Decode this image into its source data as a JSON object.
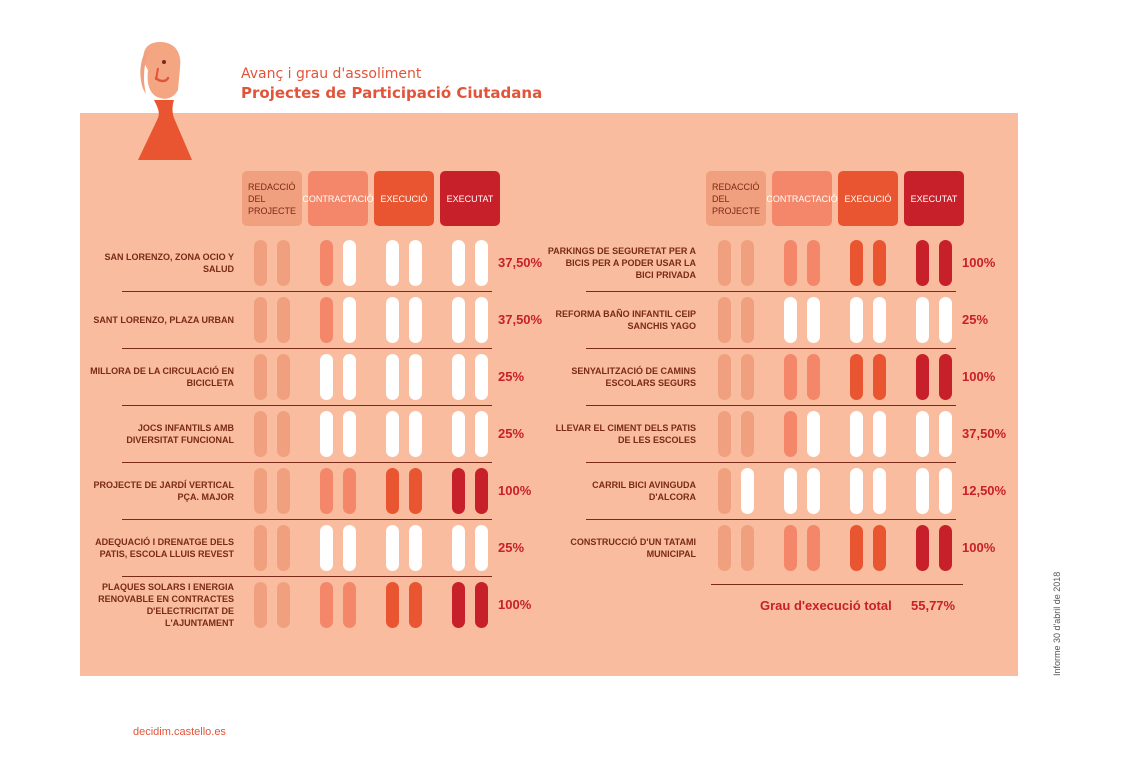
{
  "header": {
    "subtitle": "Avanç i grau d'assoliment",
    "title": "Projectes de Participació Ciutadana"
  },
  "colors": {
    "panel": "#f9bc9e",
    "redaccio": "#f0a07e",
    "contractacio": "#f4876a",
    "execucio": "#e85530",
    "executat": "#c8202a",
    "empty": "#ffffff",
    "percent_text": "#c8202a"
  },
  "chart_data": {
    "type": "table",
    "phases": [
      "REDACCIÓ DEL PROJECTE",
      "CONTRACTACIÓ",
      "EXECUCIÓ",
      "EXECUTAT"
    ],
    "left_projects": [
      {
        "name": "SAN LORENZO, ZONA OCIO Y SALUD",
        "phase_fill": [
          1,
          0.5,
          0,
          0
        ],
        "percent": "37,50%"
      },
      {
        "name": "SANT LORENZO, PLAZA URBAN",
        "phase_fill": [
          1,
          0.5,
          0,
          0
        ],
        "percent": "37,50%"
      },
      {
        "name": "MILLORA DE LA CIRCULACIÓ EN BICICLETA",
        "phase_fill": [
          1,
          0,
          0,
          0
        ],
        "percent": "25%"
      },
      {
        "name": "JOCS INFANTILS AMB DIVERSITAT FUNCIONAL",
        "phase_fill": [
          1,
          0,
          0,
          0
        ],
        "percent": "25%"
      },
      {
        "name": "PROJECTE DE JARDÍ VERTICAL PÇA. MAJOR",
        "phase_fill": [
          1,
          1,
          1,
          1
        ],
        "percent": "100%"
      },
      {
        "name": "ADEQUACIÓ I DRENATGE DELS PATIS, ESCOLA LLUIS REVEST",
        "phase_fill": [
          1,
          0,
          0,
          0
        ],
        "percent": "25%"
      },
      {
        "name": "PLAQUES SOLARS I ENERGIA RENOVABLE EN CONTRACTES D'ELECTRICITAT DE L'AJUNTAMENT",
        "phase_fill": [
          1,
          1,
          1,
          1
        ],
        "percent": "100%"
      }
    ],
    "right_projects": [
      {
        "name": "PARKINGS DE SEGURETAT PER A BICIS PER A PODER USAR LA BICI PRIVADA",
        "phase_fill": [
          1,
          1,
          1,
          1
        ],
        "percent": "100%"
      },
      {
        "name": "REFORMA BAÑO INFANTIL CEIP SANCHIS YAGO",
        "phase_fill": [
          1,
          0,
          0,
          0
        ],
        "percent": "25%"
      },
      {
        "name": "SENYALITZACIÓ DE CAMINS ESCOLARS SEGURS",
        "phase_fill": [
          1,
          1,
          1,
          1
        ],
        "percent": "100%"
      },
      {
        "name": "LLEVAR EL CIMENT DELS PATIS DE LES ESCOLES",
        "phase_fill": [
          1,
          0.5,
          0,
          0
        ],
        "percent": "37,50%"
      },
      {
        "name": "CARRIL BICI AVINGUDA D'ALCORA",
        "phase_fill": [
          0.5,
          0,
          0,
          0
        ],
        "percent": "12,50%"
      },
      {
        "name": "CONSTRUCCIÓ D'UN TATAMI MUNICIPAL",
        "phase_fill": [
          1,
          1,
          1,
          1
        ],
        "percent": "100%"
      }
    ],
    "total_label": "Grau d'execució total",
    "total_value": "55,77%"
  },
  "side_note": "Informe 30 d'abril de 2018",
  "footer": "decidim.castello.es"
}
